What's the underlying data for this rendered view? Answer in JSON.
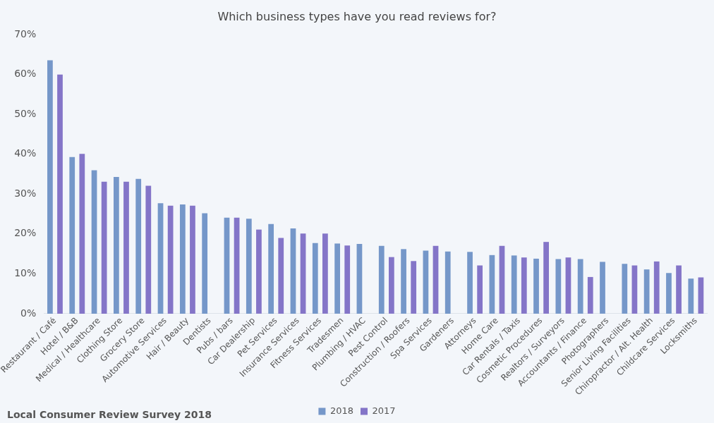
{
  "chart_data": {
    "type": "bar",
    "title": "Which business types have you read reviews for?",
    "categories": [
      "Restaurant / Café",
      "Hotel / B&B",
      "Medical / Healthcare",
      "Clothing Store",
      "Grocery Store",
      "Automotive Services",
      "Hair / Beauty",
      "Dentists",
      "Pubs / bars",
      "Car Dealership",
      "Pet Services",
      "Insurance Services",
      "Fitness Services",
      "Tradesmen",
      "Plumbing / HVAC",
      "Pest Control",
      "Construction / Roofers",
      "Spa Services",
      "Gardeners",
      "Attorneys",
      "Home Care",
      "Car Rentals / Taxis",
      "Cosmetic Procedures",
      "Realtors / Surveyors",
      "Accountants / Finance",
      "Photographers",
      "Senior Living Facilities",
      "Chiropractor / Alt. Health",
      "Childcare Services",
      "Locksmiths"
    ],
    "series": [
      {
        "name": "2018",
        "color": "#7597c9",
        "values": [
          63.6,
          39.3,
          36,
          34.3,
          33.8,
          27.7,
          27.4,
          25.2,
          24.1,
          23.8,
          22.5,
          21.4,
          17.7,
          17.6,
          17.5,
          17,
          16.2,
          15.8,
          15.6,
          15.5,
          14.7,
          14.6,
          13.8,
          13.7,
          13.7,
          13,
          12.5,
          11.1,
          10.2,
          8.8
        ]
      },
      {
        "name": "2017",
        "color": "#8475c8",
        "values": [
          60,
          40.1,
          33.1,
          33.1,
          32.1,
          27.1,
          27.1,
          null,
          24.1,
          21.1,
          19,
          20.1,
          20.1,
          17.1,
          null,
          14.2,
          13.2,
          17,
          null,
          12.1,
          17,
          14.1,
          18,
          14.1,
          9.2,
          null,
          12.1,
          13.1,
          12.1,
          9.1
        ]
      }
    ],
    "ylim": [
      0,
      70
    ],
    "yticks": [
      {
        "value": 0,
        "label": "0%"
      },
      {
        "value": 10,
        "label": "10%"
      },
      {
        "value": 20,
        "label": "20%"
      },
      {
        "value": 30,
        "label": "30%"
      },
      {
        "value": 40,
        "label": "40%"
      },
      {
        "value": 50,
        "label": "50%"
      },
      {
        "value": 60,
        "label": "60%"
      },
      {
        "value": 70,
        "label": "70%"
      }
    ],
    "grid": false,
    "legend": "bottom",
    "annotations": [
      "Local Consumer Review Survey 2018"
    ]
  }
}
